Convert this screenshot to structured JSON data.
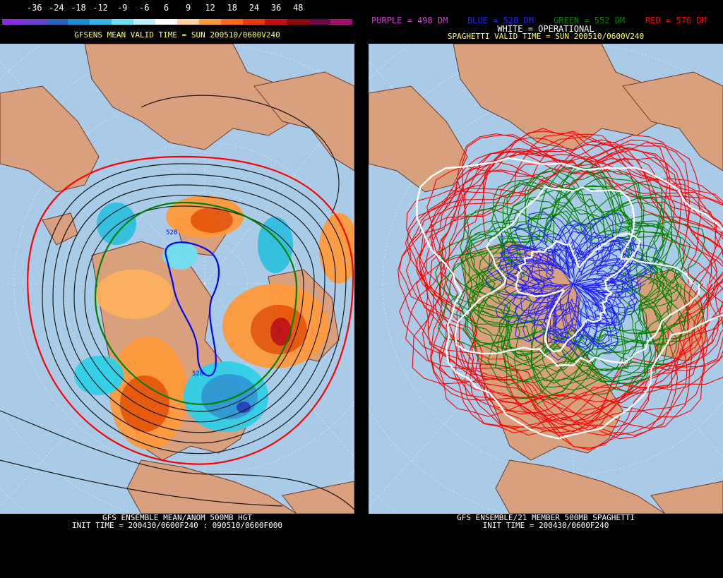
{
  "left": {
    "scale_labels": [
      "-36",
      "-24",
      "-18",
      "-12",
      "-9",
      "-6",
      "6",
      "9",
      "12",
      "18",
      "24",
      "36",
      "48"
    ],
    "scale_colors": [
      "#8a2be2",
      "#6a3fd0",
      "#2c5fbf",
      "#1a8cd8",
      "#2fb6e8",
      "#6fe0f0",
      "#bfefff",
      "#ffffff",
      "#ffd2a0",
      "#ff9a3c",
      "#ff6a1a",
      "#e83a0a",
      "#c01010",
      "#8a0a0a",
      "#6a0a4a",
      "#a01070"
    ],
    "title": "GFSENS MEAN VALID TIME = SUN 200510/0600V240",
    "footer_line1": "GFS ENSEMBLE MEAN/ANOM 500MB HGT",
    "footer_line2": "INIT TIME = 200430/0600F240 : 090510/0600F000",
    "contour_labels": [
      "528",
      "528"
    ]
  },
  "right": {
    "legend_purple": "PURPLE = 498 DM",
    "legend_blue": "BLUE = 528 DM",
    "legend_green": "GREEN = 552 DM",
    "legend_red": "RED = 576 DM",
    "legend_white": "WHITE = OPERATIONAL",
    "title": "SPAGHETTI VALID TIME = SUN 200510/0600V240",
    "footer_line1": "GFS ENSEMBLE/21 MEMBER 500MB SPAGHETTI",
    "footer_line2": "INIT TIME = 200430/0600F240"
  },
  "colors": {
    "ocean": "#a9cbe8",
    "land": "#d9a07e",
    "border": "#6b3a2a",
    "title_yellow": "#ffff66",
    "caption_white": "#ffffff",
    "purple": "#d040d0",
    "blue": "#2020ff",
    "green": "#008000",
    "red": "#ff0000"
  }
}
